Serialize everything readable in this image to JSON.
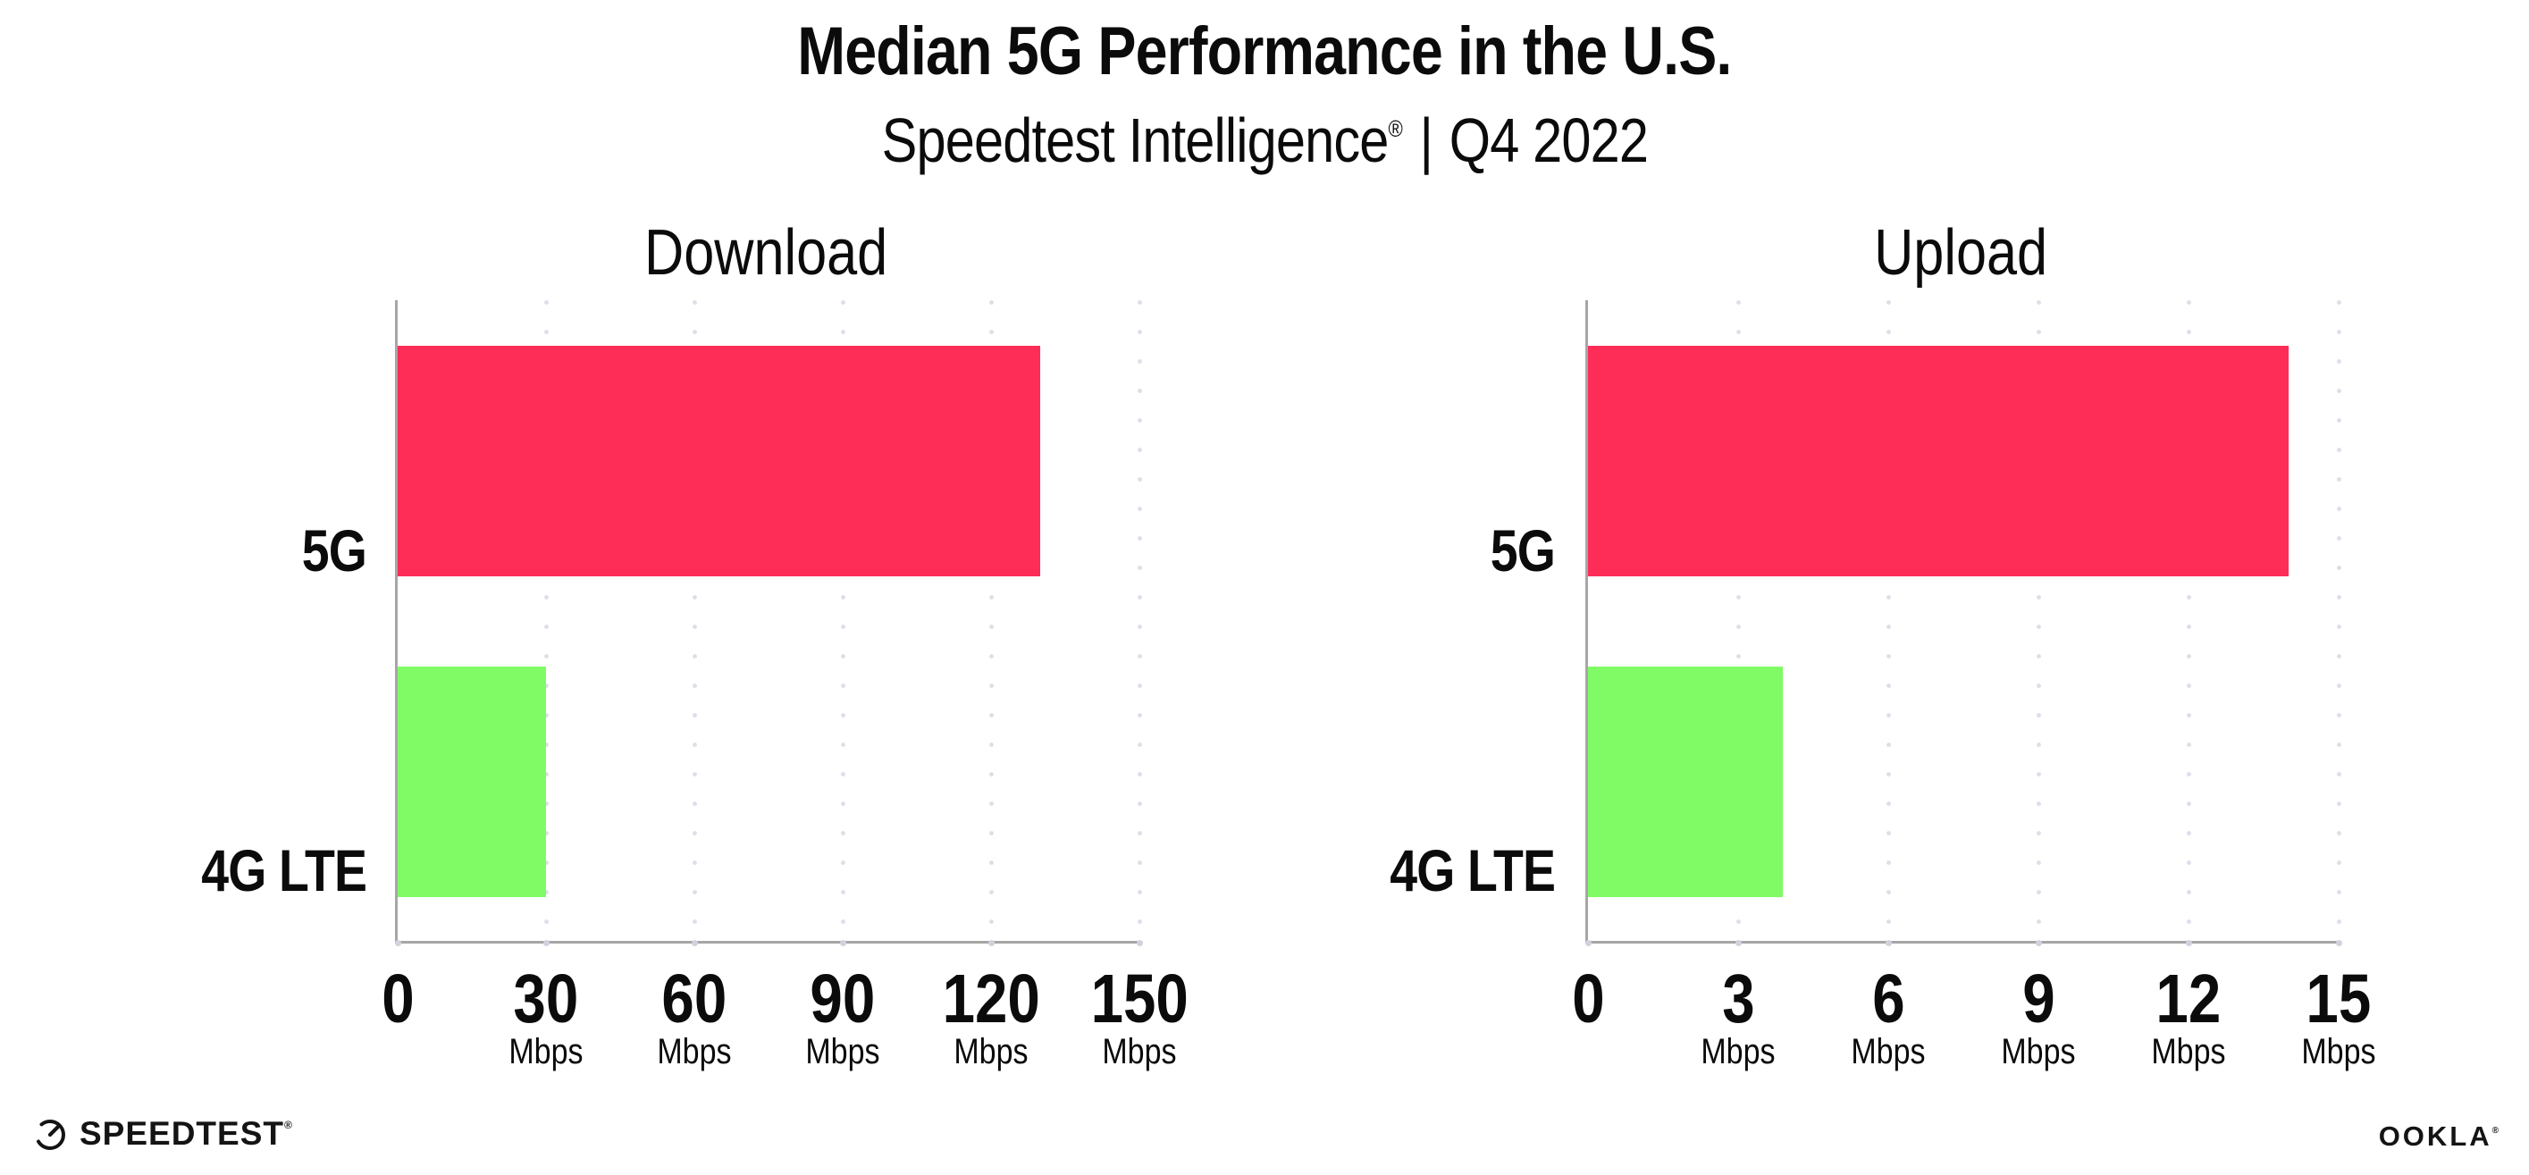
{
  "header": {
    "title": "Median 5G Performance in the U.S.",
    "subtitle_brand": "Speedtest Intelligence",
    "subtitle_mark": "®",
    "subtitle_divider": "|",
    "subtitle_period": "Q4 2022"
  },
  "colors": {
    "bar_5g": "#fd2d58",
    "bar_4g_lte": "#80fb66",
    "axis": "#a6a6a6",
    "grid_dot": "#dedee8",
    "text": "#0b0b0b"
  },
  "chart_data": [
    {
      "type": "bar",
      "orientation": "horizontal",
      "title": "Download",
      "categories": [
        "5G",
        "4G LTE"
      ],
      "values": [
        130,
        30
      ],
      "unit": "Mbps",
      "xlim": [
        0,
        150
      ],
      "xticks": [
        0,
        30,
        60,
        90,
        120,
        150
      ],
      "grid": "dotted-vertical",
      "legend": "none",
      "series_colors": [
        "#fd2d58",
        "#80fb66"
      ]
    },
    {
      "type": "bar",
      "orientation": "horizontal",
      "title": "Upload",
      "categories": [
        "5G",
        "4G LTE"
      ],
      "values": [
        14,
        3.9
      ],
      "unit": "Mbps",
      "xlim": [
        0,
        15
      ],
      "xticks": [
        0,
        3,
        6,
        9,
        12,
        15
      ],
      "grid": "dotted-vertical",
      "legend": "none",
      "series_colors": [
        "#fd2d58",
        "#80fb66"
      ]
    }
  ],
  "footer": {
    "speedtest_logo_text": "SPEEDTEST",
    "speedtest_mark": "®",
    "ookla_logo_text": "OOKLA",
    "ookla_mark": "®"
  }
}
